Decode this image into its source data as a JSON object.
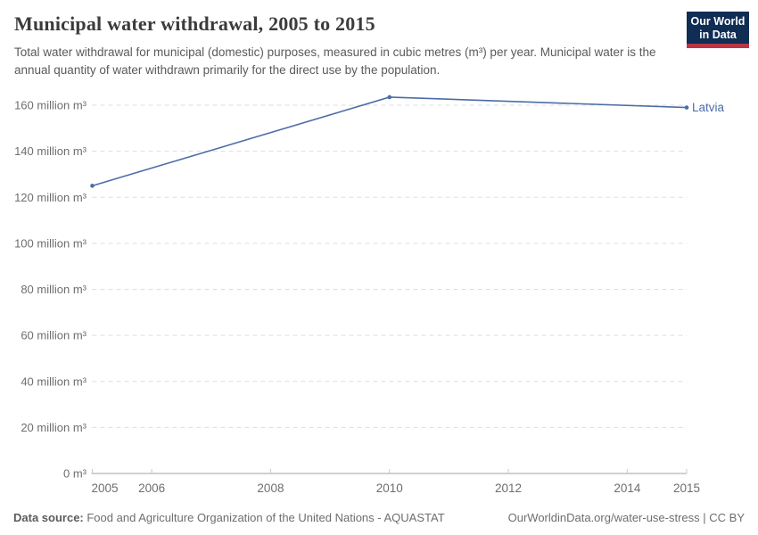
{
  "header": {
    "title": "Municipal water withdrawal, 2005 to 2015",
    "subtitle": "Total water withdrawal for municipal (domestic) purposes, measured in cubic metres (m³) per year. Municipal water is the annual quantity of water withdrawn primarily for the direct use by the population.",
    "logo": {
      "line1": "Our World",
      "line2": "in Data",
      "bg_color": "#102d54",
      "accent_color": "#bc3544"
    }
  },
  "chart_data": {
    "type": "line",
    "title": "Municipal water withdrawal, 2005 to 2015",
    "xlabel": "",
    "ylabel": "",
    "unit": "million m³",
    "xlim": [
      2005,
      2015
    ],
    "ylim": [
      0,
      160
    ],
    "grid": "horizontal-dashed",
    "legend_position": "end-of-line label",
    "x_ticks": [
      {
        "year": 2005,
        "label": "2005"
      },
      {
        "year": 2006,
        "label": "2006"
      },
      {
        "year": 2008,
        "label": "2008"
      },
      {
        "year": 2010,
        "label": "2010"
      },
      {
        "year": 2012,
        "label": "2012"
      },
      {
        "year": 2014,
        "label": "2014"
      },
      {
        "year": 2015,
        "label": "2015"
      }
    ],
    "y_ticks": [
      {
        "value": 0,
        "label": "0 m³"
      },
      {
        "value": 20,
        "label": "20 million m³"
      },
      {
        "value": 40,
        "label": "40 million m³"
      },
      {
        "value": 60,
        "label": "60 million m³"
      },
      {
        "value": 80,
        "label": "80 million m³"
      },
      {
        "value": 100,
        "label": "100 million m³"
      },
      {
        "value": 120,
        "label": "120 million m³"
      },
      {
        "value": 140,
        "label": "140 million m³"
      },
      {
        "value": 160,
        "label": "160 million m³"
      }
    ],
    "series": [
      {
        "name": "Latvia",
        "color": "#4c6ca8",
        "points": [
          {
            "x": 2005,
            "y": 125
          },
          {
            "x": 2010,
            "y": 163.5
          },
          {
            "x": 2015,
            "y": 159
          }
        ]
      }
    ]
  },
  "footer": {
    "source_label": "Data source:",
    "source_text": " Food and Agriculture Organization of the United Nations - AQUASTAT",
    "credit": "OurWorldinData.org/water-use-stress | CC BY"
  },
  "colors": {
    "grid": "#dddddd",
    "axis": "#a3a3a3",
    "tick": "#c9c9c9",
    "axis_text": "#6e6e6e",
    "series_blue": "#4c6ca8"
  }
}
